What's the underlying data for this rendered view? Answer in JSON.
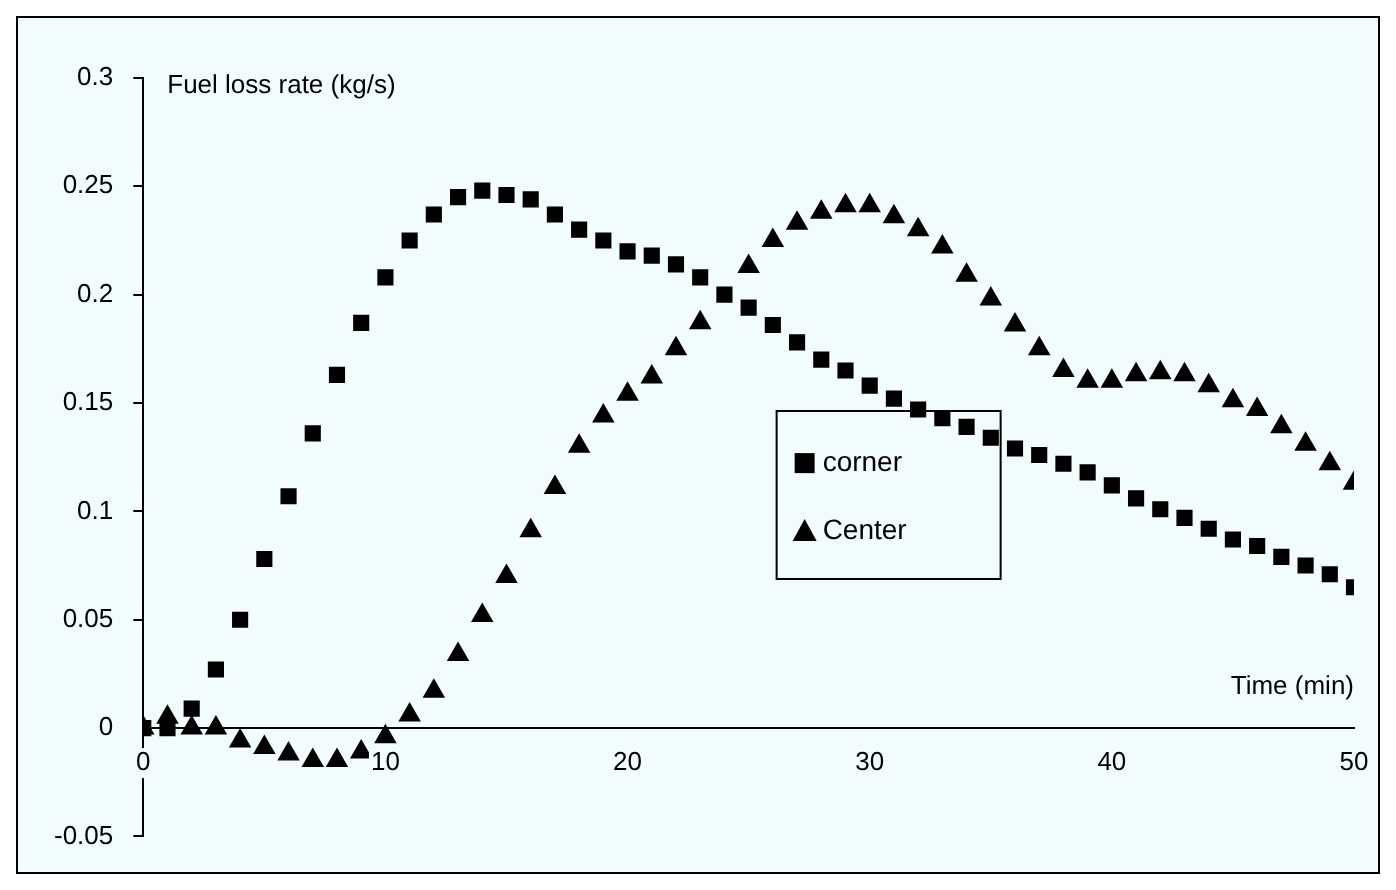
{
  "chart_data": {
    "type": "scatter",
    "xlabel": "Time (min)",
    "ylabel": "Fuel loss rate (kg/s)",
    "x": [
      0,
      1,
      2,
      3,
      4,
      5,
      6,
      7,
      8,
      9,
      10,
      11,
      12,
      13,
      14,
      15,
      16,
      17,
      18,
      19,
      20,
      21,
      22,
      23,
      24,
      25,
      26,
      27,
      28,
      29,
      30,
      31,
      32,
      33,
      34,
      35,
      36,
      37,
      38,
      39,
      40,
      41,
      42,
      43,
      44,
      45,
      46,
      47,
      48,
      49,
      50
    ],
    "series": [
      {
        "name": "corner",
        "color": "#000000",
        "marker": "square",
        "values": [
          0,
          0,
          0.009,
          0.027,
          0.05,
          0.078,
          0.107,
          0.136,
          0.163,
          0.187,
          0.208,
          0.225,
          0.237,
          0.245,
          0.248,
          0.246,
          0.244,
          0.237,
          0.23,
          0.225,
          0.22,
          0.218,
          0.214,
          0.208,
          0.2,
          0.194,
          0.186,
          0.178,
          0.17,
          0.165,
          0.158,
          0.152,
          0.147,
          0.143,
          0.139,
          0.134,
          0.129,
          0.126,
          0.122,
          0.118,
          0.112,
          0.106,
          0.101,
          0.097,
          0.092,
          0.087,
          0.084,
          0.079,
          0.075,
          0.071,
          0.065
        ]
      },
      {
        "name": "Center",
        "color": "#000000",
        "marker": "triangle",
        "values": [
          0,
          0.005,
          0,
          0,
          -0.006,
          -0.009,
          -0.012,
          -0.015,
          -0.015,
          -0.011,
          -0.004,
          0.006,
          0.017,
          0.034,
          0.052,
          0.07,
          0.091,
          0.111,
          0.13,
          0.144,
          0.154,
          0.162,
          0.175,
          0.187,
          null,
          0.213,
          0.225,
          0.233,
          0.238,
          0.241,
          0.241,
          0.236,
          0.23,
          0.222,
          0.209,
          0.198,
          0.186,
          0.175,
          0.165,
          0.16,
          0.16,
          0.163,
          0.164,
          0.163,
          0.158,
          0.151,
          0.147,
          0.139,
          0.131,
          0.122,
          0.113
        ]
      }
    ],
    "xlim": [
      0,
      50
    ],
    "xticks": [
      0,
      10,
      20,
      30,
      40,
      50
    ],
    "ylim": [
      -0.05,
      0.3
    ],
    "yticks": [
      -0.05,
      0,
      0.05,
      0.1,
      0.15,
      0.2,
      0.25,
      0.3
    ],
    "grid": false,
    "legend": "center"
  }
}
